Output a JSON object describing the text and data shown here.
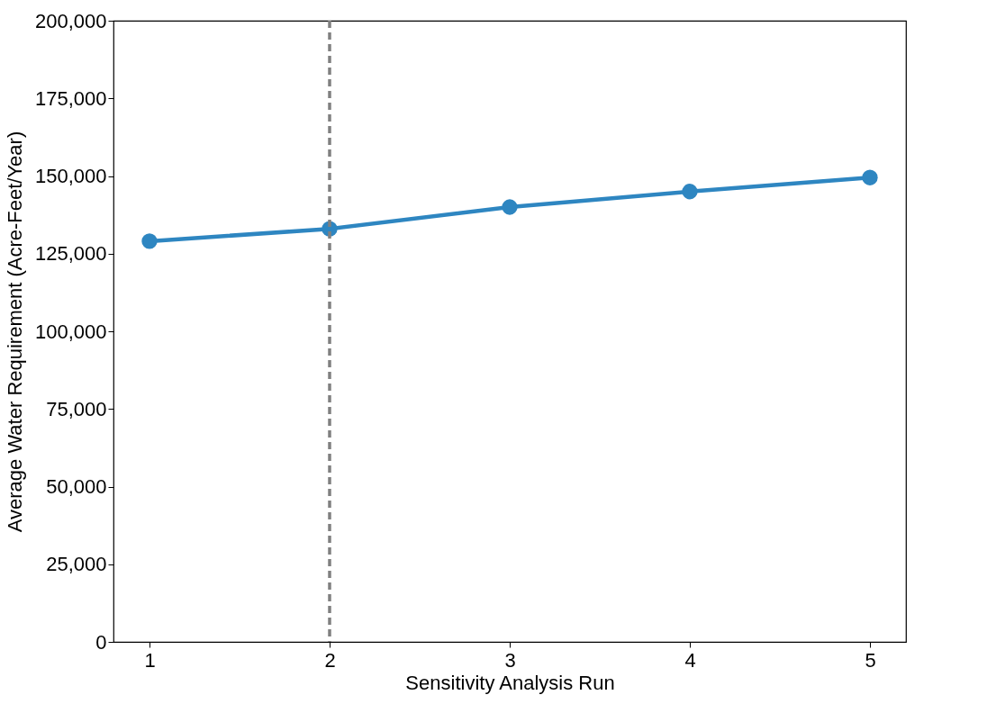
{
  "chart_data": {
    "type": "line",
    "xlabel": "Sensitivity Analysis Run",
    "ylabel": "Average Water Requirement (Acre-Feet/Year)",
    "x": [
      1,
      2,
      3,
      4,
      5
    ],
    "series": [
      {
        "color": "#2e86c1",
        "values": [
          129000,
          133000,
          140000,
          145000,
          149500
        ]
      }
    ],
    "xlim": [
      0.8,
      5.2
    ],
    "xticks": [
      1,
      2,
      3,
      4,
      5
    ],
    "ylim": [
      0,
      200000
    ],
    "yticks": [
      0,
      {
        "value": 25000,
        "label": "25,000"
      },
      {
        "value": 50000,
        "label": "50,000"
      },
      {
        "value": 75000,
        "label": "75,000"
      },
      {
        "value": 100000,
        "label": "100,000"
      },
      {
        "value": 125000,
        "label": "125,000"
      },
      {
        "value": 150000,
        "label": "150,000"
      },
      {
        "value": 175000,
        "label": "175,000"
      },
      {
        "value": 200000,
        "label": "200,000"
      }
    ],
    "ref_lines": [
      {
        "axis": "x",
        "value": 2,
        "color": "#808080",
        "line_style": "dashed"
      }
    ],
    "marker": "circle",
    "line_style": "solid",
    "grid": false
  }
}
